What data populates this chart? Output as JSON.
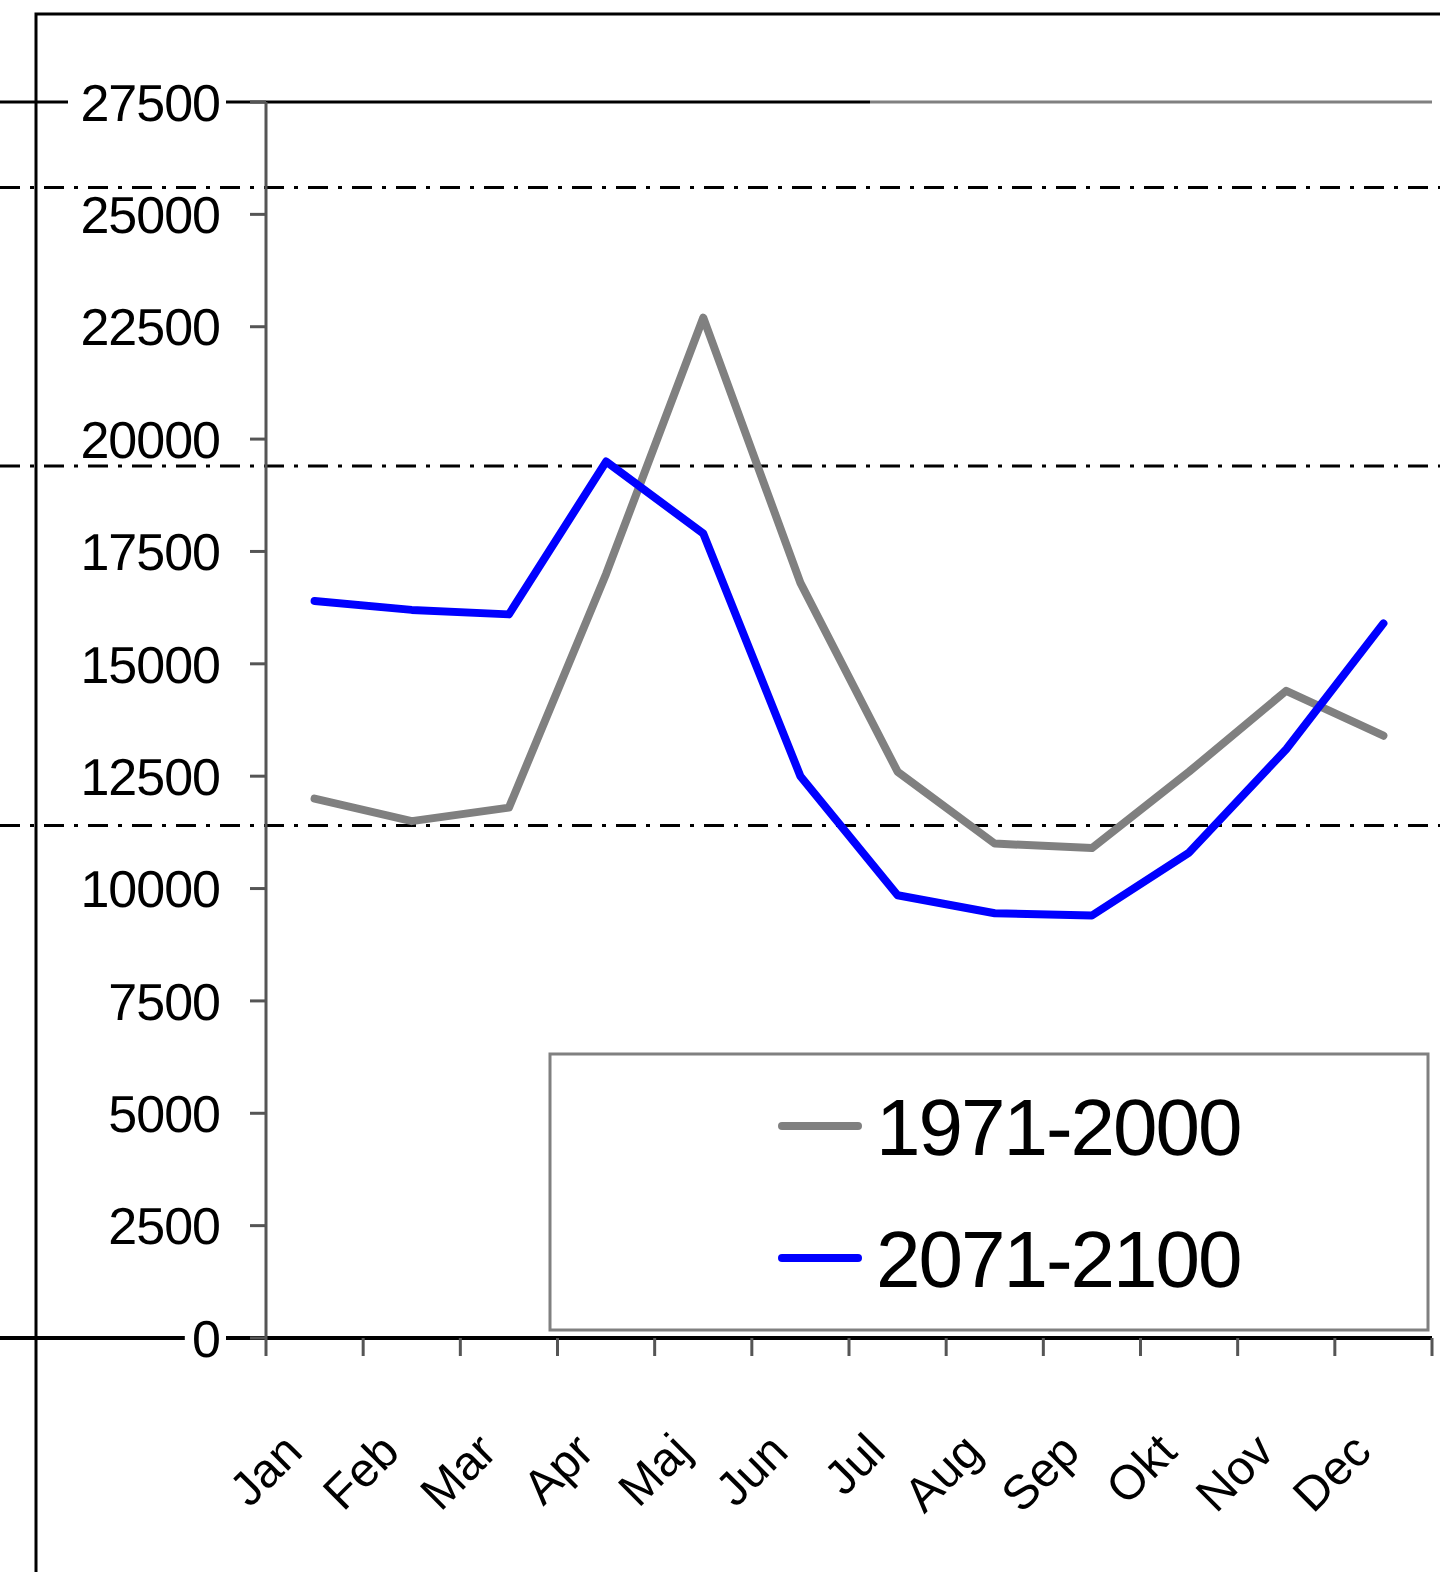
{
  "chart_data": {
    "type": "line",
    "categories": [
      "Jan",
      "Feb",
      "Mar",
      "Apr",
      "Maj",
      "Jun",
      "Jul",
      "Aug",
      "Sep",
      "Okt",
      "Nov",
      "Dec"
    ],
    "series": [
      {
        "name": "1971-2000",
        "color": "#808080",
        "values": [
          12000,
          11500,
          11800,
          17000,
          22700,
          16800,
          12600,
          11000,
          10900,
          12600,
          14400,
          13400
        ]
      },
      {
        "name": "2071-2100",
        "color": "#0000ff",
        "values": [
          16400,
          16200,
          16100,
          19500,
          17900,
          12500,
          9850,
          9450,
          9400,
          10800,
          13100,
          15900
        ]
      }
    ],
    "ylim": [
      0,
      27500
    ],
    "yticks": [
      0,
      2500,
      5000,
      7500,
      10000,
      12500,
      15000,
      17500,
      20000,
      22500,
      25000,
      27500
    ],
    "ref_lines": [
      {
        "axis": "y",
        "value": 25600,
        "color": "#000000",
        "line_style": "dashdot"
      },
      {
        "axis": "y",
        "value": 19400,
        "color": "#000000",
        "line_style": "dashdot"
      },
      {
        "axis": "y",
        "value": 11400,
        "color": "#000000",
        "line_style": "dashdot"
      }
    ],
    "legend": "bottom right"
  }
}
